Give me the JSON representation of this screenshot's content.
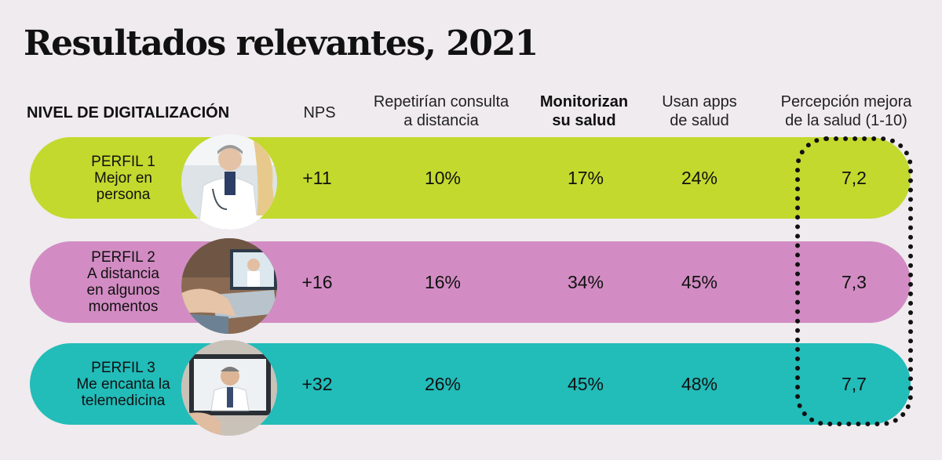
{
  "title": "Resultados relevantes, 2021",
  "chart_data": {
    "type": "table",
    "title": "Resultados relevantes, 2021",
    "row_header": "NIVEL DE DIGITALIZACIÓN",
    "columns": [
      {
        "line1": "NPS",
        "line2": ""
      },
      {
        "line1": "Repetirían consulta",
        "line2": "a distancia"
      },
      {
        "line1": "Monitorizan",
        "line2": "su salud"
      },
      {
        "line1": "Usan apps",
        "line2": "de salud"
      },
      {
        "line1": "Percepción mejora",
        "line2": "de la salud (1-10)"
      }
    ],
    "rows": [
      {
        "profile_lines": [
          "PERFIL 1",
          "Mejor en",
          "persona"
        ],
        "values": [
          "+11",
          "10%",
          "17%",
          "24%",
          "7,2"
        ]
      },
      {
        "profile_lines": [
          "PERFIL 2",
          "A distancia",
          "en algunos",
          "momentos"
        ],
        "values": [
          "+16",
          "16%",
          "34%",
          "45%",
          "7,3"
        ]
      },
      {
        "profile_lines": [
          "PERFIL 3",
          "Me encanta la",
          "telemedicina"
        ],
        "values": [
          "+32",
          "26%",
          "45%",
          "48%",
          "7,7"
        ]
      }
    ]
  },
  "colors": {
    "row1": "#c3d92e",
    "row2": "#d28cc3",
    "row3": "#22bcb9",
    "highlight_border": "#111111"
  },
  "icons": [
    "doctor-patient-photo",
    "laptop-video-call-photo",
    "tablet-telemedicine-photo"
  ]
}
